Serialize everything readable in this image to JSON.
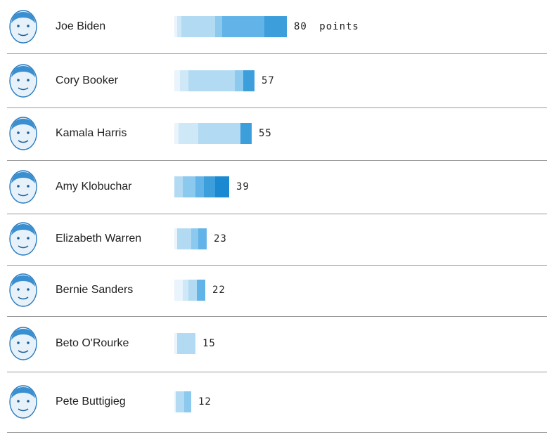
{
  "chart_data": {
    "type": "bar",
    "orientation": "horizontal",
    "stacked": true,
    "title": "",
    "xlabel": "",
    "ylabel": "",
    "xlim": [
      0,
      80
    ],
    "unit_label": "points",
    "grid": false,
    "legend": "none",
    "colors": [
      "#e9f4fc",
      "#cfe8f8",
      "#b2dbf3",
      "#8bc9ee",
      "#62b4e8",
      "#3d9edc",
      "#1b89d1"
    ],
    "rows": [
      {
        "name": "Joe Biden",
        "value": 80,
        "value_label": "80",
        "segments": [
          {
            "v": 2,
            "c": "#e9f4fc"
          },
          {
            "v": 3,
            "c": "#cfe8f8"
          },
          {
            "v": 24,
            "c": "#b2dbf3"
          },
          {
            "v": 5,
            "c": "#8bc9ee"
          },
          {
            "v": 30,
            "c": "#62b4e8"
          },
          {
            "v": 16,
            "c": "#3d9edc"
          }
        ]
      },
      {
        "name": "Cory Booker",
        "value": 57,
        "value_label": "57",
        "segments": [
          {
            "v": 4,
            "c": "#e9f4fc"
          },
          {
            "v": 6,
            "c": "#cfe8f8"
          },
          {
            "v": 33,
            "c": "#b2dbf3"
          },
          {
            "v": 6,
            "c": "#8bc9ee"
          },
          {
            "v": 8,
            "c": "#3d9edc"
          }
        ]
      },
      {
        "name": "Kamala Harris",
        "value": 55,
        "value_label": "55",
        "segments": [
          {
            "v": 3,
            "c": "#e9f4fc"
          },
          {
            "v": 14,
            "c": "#cfe8f8"
          },
          {
            "v": 30,
            "c": "#b2dbf3"
          },
          {
            "v": 8,
            "c": "#3d9edc"
          }
        ]
      },
      {
        "name": "Amy Klobuchar",
        "value": 39,
        "value_label": "39",
        "segments": [
          {
            "v": 6,
            "c": "#b2dbf3"
          },
          {
            "v": 9,
            "c": "#8bc9ee"
          },
          {
            "v": 6,
            "c": "#62b4e8"
          },
          {
            "v": 8,
            "c": "#3d9edc"
          },
          {
            "v": 10,
            "c": "#1b89d1"
          }
        ]
      },
      {
        "name": "Elizabeth Warren",
        "value": 23,
        "value_label": "23",
        "segments": [
          {
            "v": 2,
            "c": "#e9f4fc"
          },
          {
            "v": 10,
            "c": "#b2dbf3"
          },
          {
            "v": 5,
            "c": "#8bc9ee"
          },
          {
            "v": 6,
            "c": "#62b4e8"
          }
        ]
      },
      {
        "name": "Bernie Sanders",
        "value": 22,
        "value_label": "22",
        "segments": [
          {
            "v": 6,
            "c": "#e9f4fc"
          },
          {
            "v": 4,
            "c": "#cfe8f8"
          },
          {
            "v": 6,
            "c": "#b2dbf3"
          },
          {
            "v": 6,
            "c": "#62b4e8"
          }
        ]
      },
      {
        "name": "Beto O'Rourke",
        "value": 15,
        "value_label": "15",
        "segments": [
          {
            "v": 2,
            "c": "#e9f4fc"
          },
          {
            "v": 13,
            "c": "#b2dbf3"
          }
        ]
      },
      {
        "name": "Pete Buttigieg",
        "value": 12,
        "value_label": "12",
        "segments": [
          {
            "v": 1,
            "c": "#e9f4fc"
          },
          {
            "v": 6,
            "c": "#b2dbf3"
          },
          {
            "v": 5,
            "c": "#8bc9ee"
          }
        ]
      }
    ]
  }
}
